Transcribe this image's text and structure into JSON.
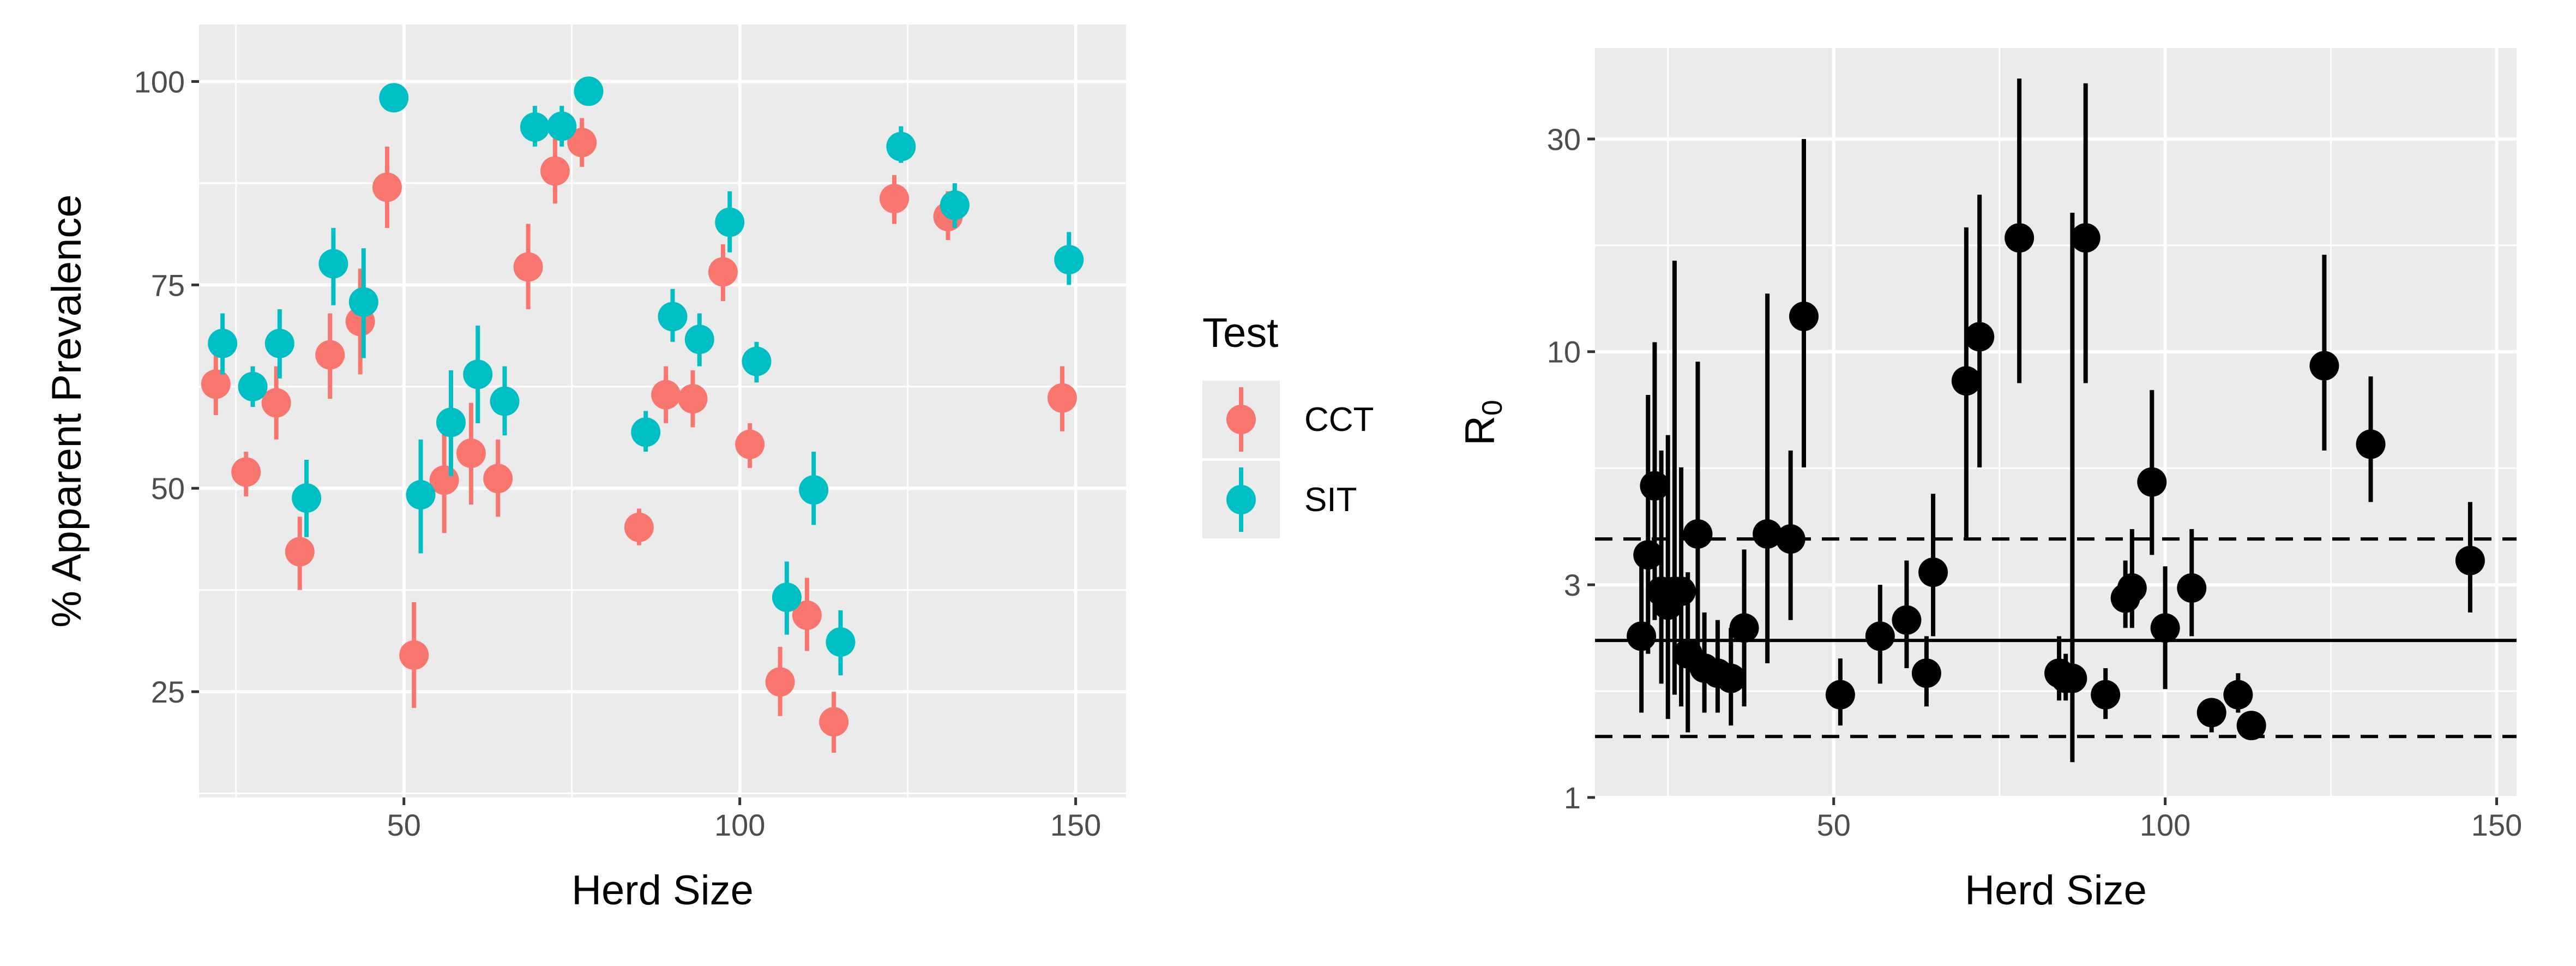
{
  "colors": {
    "CCT": "#F8766D",
    "SIT": "#00BFC4",
    "r0": "#000000",
    "panel": "#EBEBEB",
    "grid": "#FFFFFF"
  },
  "chart_data": [
    {
      "type": "scatter",
      "xlabel": "Herd Size",
      "ylabel": "% Apparent Prevalence",
      "xlim": [
        19.5,
        157.5
      ],
      "ylim": [
        12,
        107
      ],
      "x_major_ticks": [
        50,
        100,
        150
      ],
      "y_major_ticks": [
        25,
        50,
        75,
        100
      ],
      "grid": true,
      "error_bars": true,
      "legend": {
        "title": "Test",
        "position": "right",
        "entries": [
          "CCT",
          "SIT"
        ]
      },
      "series": [
        {
          "name": "CCT",
          "color": "#F8766D",
          "points": [
            {
              "x": 22,
              "y": 62.8,
              "lo": 59,
              "hi": 67
            },
            {
              "x": 26.5,
              "y": 52,
              "lo": 49,
              "hi": 54.5
            },
            {
              "x": 31,
              "y": 60.5,
              "lo": 56,
              "hi": 65
            },
            {
              "x": 34.5,
              "y": 42.2,
              "lo": 37.5,
              "hi": 46.5
            },
            {
              "x": 39,
              "y": 66.4,
              "lo": 61,
              "hi": 71.5
            },
            {
              "x": 43.5,
              "y": 70.5,
              "lo": 64,
              "hi": 77
            },
            {
              "x": 47.5,
              "y": 87,
              "lo": 82,
              "hi": 92
            },
            {
              "x": 51.5,
              "y": 29.5,
              "lo": 23,
              "hi": 36
            },
            {
              "x": 56,
              "y": 51,
              "lo": 44.5,
              "hi": 57.5
            },
            {
              "x": 60,
              "y": 54.3,
              "lo": 48,
              "hi": 60.5
            },
            {
              "x": 64,
              "y": 51.2,
              "lo": 46.5,
              "hi": 56
            },
            {
              "x": 68.5,
              "y": 77.2,
              "lo": 72,
              "hi": 82.5
            },
            {
              "x": 72.5,
              "y": 89,
              "lo": 85,
              "hi": 93
            },
            {
              "x": 76.5,
              "y": 92.5,
              "lo": 89.5,
              "hi": 95.5
            },
            {
              "x": 85,
              "y": 45.2,
              "lo": 43,
              "hi": 47.5
            },
            {
              "x": 89,
              "y": 61.5,
              "lo": 58,
              "hi": 65
            },
            {
              "x": 93,
              "y": 61,
              "lo": 57.5,
              "hi": 64.5
            },
            {
              "x": 97.5,
              "y": 76.6,
              "lo": 73,
              "hi": 80
            },
            {
              "x": 101.5,
              "y": 55.4,
              "lo": 52.5,
              "hi": 58
            },
            {
              "x": 106,
              "y": 26.2,
              "lo": 22,
              "hi": 30.5
            },
            {
              "x": 110,
              "y": 34.4,
              "lo": 30,
              "hi": 39
            },
            {
              "x": 114,
              "y": 21.3,
              "lo": 17.5,
              "hi": 25
            },
            {
              "x": 123,
              "y": 85.6,
              "lo": 82.5,
              "hi": 88.5
            },
            {
              "x": 131,
              "y": 83.4,
              "lo": 80.5,
              "hi": 86.5
            },
            {
              "x": 148,
              "y": 61.1,
              "lo": 57,
              "hi": 65
            }
          ]
        },
        {
          "name": "SIT",
          "color": "#00BFC4",
          "points": [
            {
              "x": 23,
              "y": 67.8,
              "lo": 64,
              "hi": 71.5
            },
            {
              "x": 27.5,
              "y": 62.5,
              "lo": 60,
              "hi": 65
            },
            {
              "x": 31.5,
              "y": 67.8,
              "lo": 63.5,
              "hi": 72
            },
            {
              "x": 35.5,
              "y": 48.8,
              "lo": 44,
              "hi": 53.5
            },
            {
              "x": 39.5,
              "y": 77.6,
              "lo": 72.5,
              "hi": 82
            },
            {
              "x": 44,
              "y": 72.9,
              "lo": 66,
              "hi": 79.5
            },
            {
              "x": 48.5,
              "y": 98,
              "lo": 96.5,
              "hi": 99.5
            },
            {
              "x": 52.5,
              "y": 49.2,
              "lo": 42,
              "hi": 56
            },
            {
              "x": 57,
              "y": 58.1,
              "lo": 51.5,
              "hi": 64.5
            },
            {
              "x": 61,
              "y": 64,
              "lo": 58,
              "hi": 70
            },
            {
              "x": 65,
              "y": 60.7,
              "lo": 56.5,
              "hi": 65
            },
            {
              "x": 69.5,
              "y": 94.4,
              "lo": 92,
              "hi": 97
            },
            {
              "x": 73.5,
              "y": 94.5,
              "lo": 92,
              "hi": 97
            },
            {
              "x": 77.5,
              "y": 98.8,
              "lo": 97.5,
              "hi": 100
            },
            {
              "x": 86,
              "y": 56.9,
              "lo": 54.5,
              "hi": 59.5
            },
            {
              "x": 90,
              "y": 71.1,
              "lo": 68,
              "hi": 74.5
            },
            {
              "x": 94,
              "y": 68.3,
              "lo": 65,
              "hi": 71.5
            },
            {
              "x": 98.5,
              "y": 82.7,
              "lo": 79,
              "hi": 86.5
            },
            {
              "x": 102.5,
              "y": 65.6,
              "lo": 63,
              "hi": 68
            },
            {
              "x": 107,
              "y": 36.6,
              "lo": 32,
              "hi": 41
            },
            {
              "x": 111,
              "y": 49.8,
              "lo": 45.5,
              "hi": 54.5
            },
            {
              "x": 115,
              "y": 31.1,
              "lo": 27,
              "hi": 35
            },
            {
              "x": 124,
              "y": 92,
              "lo": 90,
              "hi": 94.5
            },
            {
              "x": 132,
              "y": 84.8,
              "lo": 82,
              "hi": 87.5
            },
            {
              "x": 149,
              "y": 78.1,
              "lo": 75,
              "hi": 81.5
            }
          ]
        }
      ]
    },
    {
      "type": "scatter",
      "xlabel": "Herd Size",
      "ylabel": "R",
      "ylabel_subscript": "0",
      "y_scale": "log",
      "xlim": [
        14,
        153
      ],
      "ylim": [
        1,
        48
      ],
      "x_major_ticks": [
        50,
        100,
        150
      ],
      "y_major_ticks": [
        1,
        3,
        10,
        30
      ],
      "grid": true,
      "error_bars": true,
      "reference_lines": [
        {
          "y": 2.25,
          "style": "solid"
        },
        {
          "y": 3.8,
          "style": "dashed"
        },
        {
          "y": 1.37,
          "style": "dashed"
        }
      ],
      "series": [
        {
          "color": "#000000",
          "points": [
            {
              "x": 21,
              "y": 2.3,
              "lo": 1.55,
              "hi": 3.6
            },
            {
              "x": 22,
              "y": 3.5,
              "lo": 2.1,
              "hi": 8
            },
            {
              "x": 23,
              "y": 5,
              "lo": 2.5,
              "hi": 10.5
            },
            {
              "x": 24,
              "y": 2.9,
              "lo": 1.8,
              "hi": 6
            },
            {
              "x": 25,
              "y": 2.7,
              "lo": 1.5,
              "hi": 6.5
            },
            {
              "x": 26,
              "y": 2.9,
              "lo": 1.7,
              "hi": 16
            },
            {
              "x": 27,
              "y": 2.9,
              "lo": 1.6,
              "hi": 5.5
            },
            {
              "x": 28,
              "y": 2.1,
              "lo": 1.4,
              "hi": 3.2
            },
            {
              "x": 29.5,
              "y": 3.9,
              "lo": 2,
              "hi": 9.5
            },
            {
              "x": 30.5,
              "y": 1.95,
              "lo": 1.55,
              "hi": 2.6
            },
            {
              "x": 32.5,
              "y": 1.9,
              "lo": 1.55,
              "hi": 2.5
            },
            {
              "x": 34.5,
              "y": 1.85,
              "lo": 1.45,
              "hi": 2.4
            },
            {
              "x": 36.5,
              "y": 2.4,
              "lo": 1.6,
              "hi": 3.6
            },
            {
              "x": 40,
              "y": 3.9,
              "lo": 2,
              "hi": 13.5
            },
            {
              "x": 43.5,
              "y": 3.8,
              "lo": 2.5,
              "hi": 6
            },
            {
              "x": 45.5,
              "y": 12,
              "lo": 5.5,
              "hi": 30
            },
            {
              "x": 51,
              "y": 1.7,
              "lo": 1.45,
              "hi": 2.05
            },
            {
              "x": 57,
              "y": 2.3,
              "lo": 1.8,
              "hi": 3
            },
            {
              "x": 61,
              "y": 2.5,
              "lo": 1.95,
              "hi": 3.4
            },
            {
              "x": 64,
              "y": 1.9,
              "lo": 1.6,
              "hi": 2.3
            },
            {
              "x": 65,
              "y": 3.2,
              "lo": 2.3,
              "hi": 4.8
            },
            {
              "x": 70,
              "y": 8.6,
              "lo": 3.8,
              "hi": 19
            },
            {
              "x": 72,
              "y": 10.8,
              "lo": 5.5,
              "hi": 22.5
            },
            {
              "x": 78,
              "y": 18,
              "lo": 8.5,
              "hi": 41
            },
            {
              "x": 84,
              "y": 1.9,
              "lo": 1.65,
              "hi": 2.3
            },
            {
              "x": 85,
              "y": 1.85,
              "lo": 1.65,
              "hi": 2.1
            },
            {
              "x": 86,
              "y": 1.85,
              "lo": 1.2,
              "hi": 20.5
            },
            {
              "x": 88,
              "y": 18,
              "lo": 8.5,
              "hi": 40
            },
            {
              "x": 91,
              "y": 1.7,
              "lo": 1.5,
              "hi": 1.95
            },
            {
              "x": 94,
              "y": 2.8,
              "lo": 2.4,
              "hi": 3.4
            },
            {
              "x": 95,
              "y": 2.95,
              "lo": 2.4,
              "hi": 4
            },
            {
              "x": 98,
              "y": 5.1,
              "lo": 3.5,
              "hi": 8.2
            },
            {
              "x": 100,
              "y": 2.4,
              "lo": 1.75,
              "hi": 3.3
            },
            {
              "x": 104,
              "y": 2.95,
              "lo": 2.3,
              "hi": 4
            },
            {
              "x": 107,
              "y": 1.55,
              "lo": 1.4,
              "hi": 1.65
            },
            {
              "x": 111,
              "y": 1.7,
              "lo": 1.55,
              "hi": 1.9
            },
            {
              "x": 113,
              "y": 1.45,
              "lo": 1.35,
              "hi": 1.55
            },
            {
              "x": 124,
              "y": 9.3,
              "lo": 6,
              "hi": 16.5
            },
            {
              "x": 131,
              "y": 6.2,
              "lo": 4.6,
              "hi": 8.8
            },
            {
              "x": 146,
              "y": 3.4,
              "lo": 2.6,
              "hi": 4.6
            }
          ]
        }
      ]
    }
  ]
}
